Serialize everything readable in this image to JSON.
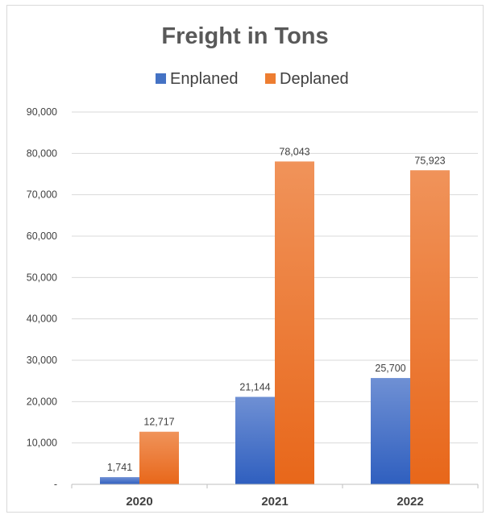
{
  "chart_data": {
    "type": "bar",
    "title": "Freight in Tons",
    "categories": [
      "2020",
      "2021",
      "2022"
    ],
    "series": [
      {
        "name": "Enplaned",
        "values": [
          1741,
          21144,
          25700
        ],
        "color": "#4472c4"
      },
      {
        "name": "Deplaned",
        "values": [
          12717,
          78043,
          75923
        ],
        "color": "#ed7d31"
      }
    ],
    "data_labels": [
      [
        "1,741",
        "21,144",
        "25,700"
      ],
      [
        "12,717",
        "78,043",
        "75,923"
      ]
    ],
    "y_ticks": [
      0,
      10000,
      20000,
      30000,
      40000,
      50000,
      60000,
      70000,
      80000,
      90000
    ],
    "y_tick_labels": [
      "-",
      "10,000",
      "20,000",
      "30,000",
      "40,000",
      "50,000",
      "60,000",
      "70,000",
      "80,000",
      "90,000"
    ],
    "ylim": [
      0,
      90000
    ],
    "grid": true,
    "legend_position": "top"
  }
}
